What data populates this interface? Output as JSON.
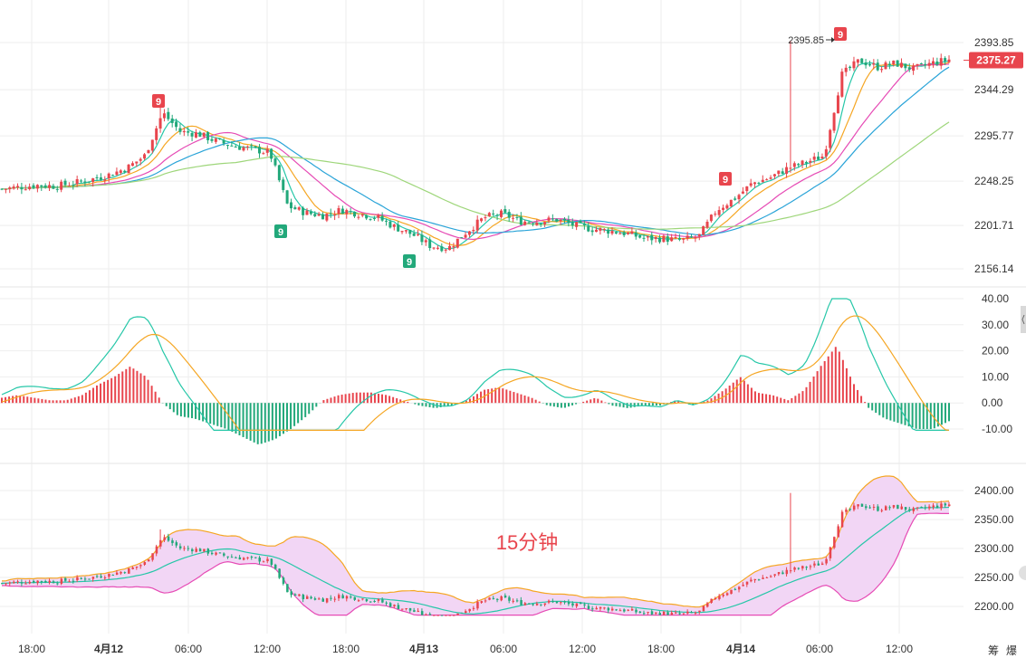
{
  "chart_data": {
    "type": "candlestick",
    "interval_label": "15分钟",
    "time_axis": {
      "labels": [
        "18:00",
        "4月12",
        "06:00",
        "12:00",
        "18:00",
        "4月13",
        "06:00",
        "12:00",
        "18:00",
        "4月14",
        "06:00",
        "12:00"
      ],
      "bold": [
        false,
        true,
        false,
        false,
        false,
        true,
        false,
        false,
        false,
        true,
        false,
        false
      ]
    },
    "corner_labels": [
      "筹",
      "爆"
    ],
    "colors": {
      "up": "#e8454d",
      "down": "#22a87a",
      "ma1": "#26c7a8",
      "ma2": "#f5a623",
      "ma3": "#e64bb5",
      "ma4": "#2aa4d8",
      "ma5": "#9ed67a",
      "price_tag": "#e8454d",
      "macd_dif": "#26c7a8",
      "macd_dea": "#f5a623",
      "boll_upper": "#f5a623",
      "boll_lower": "#e64bb5",
      "boll_mid": "#26c7a8",
      "boll_fill": "#f2d6f5"
    },
    "main_panel": {
      "y_ticks": [
        "2393.85",
        "2344.29",
        "2295.77",
        "2248.25",
        "2201.71",
        "2156.14"
      ],
      "last_price": "2375.27",
      "high_marker": "2395.85",
      "td_markers": [
        {
          "text": "9",
          "kind": "up",
          "x": "4月12 03:30"
        },
        {
          "text": "9",
          "kind": "down",
          "x": "4月12 16:00"
        },
        {
          "text": "9",
          "kind": "down",
          "x": "4月13 01:00"
        },
        {
          "text": "9",
          "kind": "up",
          "x": "4月14 00:00"
        },
        {
          "text": "9",
          "kind": "up",
          "x": "4月14 07:00"
        }
      ],
      "close_path": [
        2240,
        2242,
        2244,
        2243,
        2246,
        2250,
        2255,
        2262,
        2275,
        2320,
        2300,
        2298,
        2290,
        2285,
        2282,
        2278,
        2222,
        2215,
        2212,
        2218,
        2214,
        2210,
        2200,
        2192,
        2180,
        2178,
        2195,
        2210,
        2214,
        2206,
        2206,
        2208,
        2202,
        2198,
        2196,
        2193,
        2188,
        2188,
        2186,
        2190,
        2218,
        2230,
        2246,
        2252,
        2262,
        2268,
        2275,
        2360,
        2375,
        2368,
        2372,
        2366,
        2372,
        2376
      ]
    },
    "macd_panel": {
      "y_ticks": [
        "40.00",
        "30.00",
        "20.00",
        "10.00",
        "0.00",
        "-10.00"
      ],
      "hist": [
        2,
        3,
        2,
        1,
        1,
        3,
        7,
        10,
        14,
        10,
        0,
        -5,
        -6,
        -8,
        -10,
        -13,
        -16,
        -14,
        -10,
        -5,
        1,
        3,
        4,
        4,
        3,
        1,
        -1,
        -2,
        -1,
        1,
        5,
        6,
        4,
        2,
        -1,
        -2,
        0,
        2,
        -1,
        -2,
        -1,
        -1,
        1,
        -1,
        1,
        5,
        10,
        4,
        3,
        1,
        5,
        14,
        22,
        8,
        -2,
        -6,
        -8,
        -10,
        -10,
        -7
      ]
    },
    "boll_panel": {
      "y_ticks": [
        "2400.00",
        "2350.00",
        "2300.00",
        "2250.00",
        "2200.00"
      ]
    }
  }
}
